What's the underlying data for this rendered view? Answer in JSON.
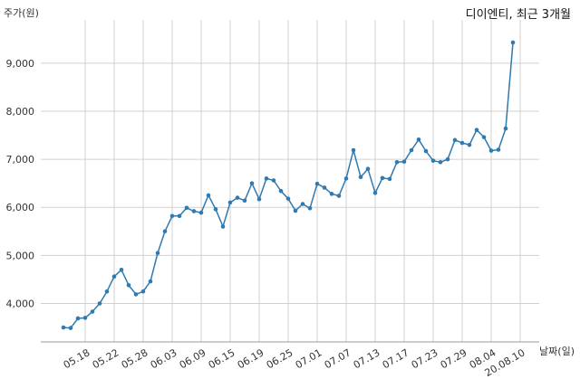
{
  "chart_data": {
    "type": "line",
    "title": "디이엔티, 최근 3개월",
    "ylabel": "주가(원)",
    "xlabel": "날짜(일)",
    "ylim": [
      3200,
      9900
    ],
    "yticks": [
      4000,
      5000,
      6000,
      7000,
      8000,
      9000
    ],
    "ytick_labels": [
      "4,000",
      "5,000",
      "6,000",
      "7,000",
      "8,000",
      "9,000"
    ],
    "xtick_labels": [
      "05.18",
      "05.22",
      "05.28",
      "06.03",
      "06.09",
      "06.15",
      "06.19",
      "06.25",
      "07.01",
      "07.07",
      "07.13",
      "07.17",
      "07.23",
      "07.29",
      "08.04",
      "20.08.10"
    ],
    "xtick_indices": [
      3,
      7,
      11,
      15,
      19,
      23,
      27,
      31,
      35,
      39,
      43,
      47,
      51,
      55,
      59,
      63
    ],
    "grid": true,
    "line_color": "#2f7ab0",
    "series": [
      {
        "values": [
          3500,
          3490,
          3690,
          3700,
          3830,
          4000,
          4250,
          4560,
          4700,
          4380,
          4190,
          4250,
          4460,
          5050,
          5500,
          5820,
          5820,
          5990,
          5920,
          5890,
          6250,
          5960,
          5600,
          6100,
          6200,
          6140,
          6500,
          6170,
          6600,
          6560,
          6340,
          6180,
          5930,
          6070,
          5980,
          6490,
          6410,
          6280,
          6240,
          6600,
          7190,
          6630,
          6800,
          6300,
          6610,
          6590,
          6940,
          6950,
          7190,
          7410,
          7170,
          6970,
          6940,
          7000,
          7400,
          7340,
          7300,
          7610,
          7460,
          7180,
          7200,
          7640,
          9430
        ]
      }
    ]
  }
}
